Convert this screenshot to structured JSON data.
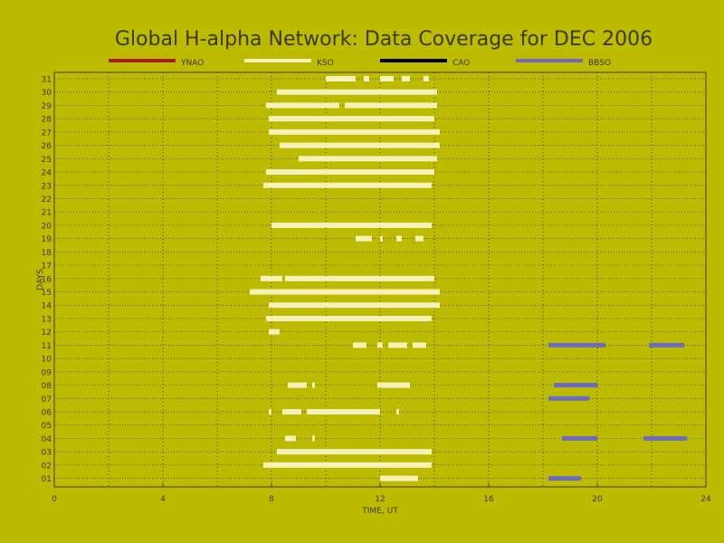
{
  "chart_data": {
    "type": "gantt",
    "title": "Global H-alpha Network: Data Coverage for DEC 2006",
    "xlabel": "TIME, UT",
    "ylabel": "DAYS",
    "xlim": [
      0,
      24
    ],
    "xticks": [
      "0",
      "4",
      "8",
      "12",
      "16",
      "20",
      "24"
    ],
    "ylim": [
      1,
      31
    ],
    "yticks": [
      "01",
      "02",
      "03",
      "04",
      "05",
      "06",
      "07",
      "08",
      "09",
      "10",
      "11",
      "12",
      "13",
      "14",
      "15",
      "16",
      "17",
      "18",
      "19",
      "20",
      "21",
      "22",
      "23",
      "24",
      "25",
      "26",
      "27",
      "28",
      "29",
      "30",
      "31"
    ],
    "grid": true,
    "legend_placement": "top",
    "series": [
      {
        "name": "YNAO",
        "color": "#a61c1c",
        "intervals": []
      },
      {
        "name": "KSO",
        "color": "#f4f2b8",
        "intervals": [
          {
            "day": 31,
            "segments": [
              [
                10.0,
                11.1
              ],
              [
                11.4,
                11.6
              ],
              [
                12.0,
                12.5
              ],
              [
                12.8,
                13.1
              ],
              [
                13.6,
                13.8
              ]
            ]
          },
          {
            "day": 30,
            "segments": [
              [
                8.2,
                14.1
              ]
            ]
          },
          {
            "day": 29,
            "segments": [
              [
                7.8,
                10.5
              ],
              [
                10.7,
                14.1
              ]
            ]
          },
          {
            "day": 28,
            "segments": [
              [
                7.9,
                14.0
              ]
            ]
          },
          {
            "day": 27,
            "segments": [
              [
                7.9,
                14.2
              ]
            ]
          },
          {
            "day": 26,
            "segments": [
              [
                8.3,
                14.2
              ]
            ]
          },
          {
            "day": 25,
            "segments": [
              [
                9.0,
                14.1
              ]
            ]
          },
          {
            "day": 24,
            "segments": [
              [
                7.8,
                14.0
              ]
            ]
          },
          {
            "day": 23,
            "segments": [
              [
                7.7,
                13.9
              ]
            ]
          },
          {
            "day": 20,
            "segments": [
              [
                8.0,
                13.9
              ]
            ]
          },
          {
            "day": 19,
            "segments": [
              [
                11.1,
                11.7
              ],
              [
                12.0,
                12.1
              ],
              [
                12.6,
                12.8
              ],
              [
                13.3,
                13.6
              ]
            ]
          },
          {
            "day": 16,
            "segments": [
              [
                7.6,
                8.4
              ],
              [
                8.5,
                14.0
              ]
            ]
          },
          {
            "day": 15,
            "segments": [
              [
                7.2,
                14.2
              ]
            ]
          },
          {
            "day": 14,
            "segments": [
              [
                7.9,
                14.2
              ]
            ]
          },
          {
            "day": 13,
            "segments": [
              [
                7.8,
                13.9
              ]
            ]
          },
          {
            "day": 12,
            "segments": [
              [
                7.9,
                8.3
              ]
            ]
          },
          {
            "day": 11,
            "segments": [
              [
                11.0,
                11.5
              ],
              [
                11.9,
                12.1
              ],
              [
                12.3,
                13.0
              ],
              [
                13.2,
                13.7
              ]
            ]
          },
          {
            "day": 8,
            "segments": [
              [
                8.6,
                9.3
              ],
              [
                9.5,
                9.6
              ],
              [
                11.9,
                13.1
              ]
            ]
          },
          {
            "day": 6,
            "segments": [
              [
                7.9,
                8.0
              ],
              [
                8.4,
                9.1
              ],
              [
                9.3,
                12.0
              ],
              [
                12.6,
                12.7
              ]
            ]
          },
          {
            "day": 4,
            "segments": [
              [
                8.5,
                8.9
              ],
              [
                9.5,
                9.6
              ]
            ]
          },
          {
            "day": 3,
            "segments": [
              [
                8.2,
                13.9
              ]
            ]
          },
          {
            "day": 2,
            "segments": [
              [
                7.7,
                13.9
              ]
            ]
          },
          {
            "day": 1,
            "segments": [
              [
                12.0,
                13.4
              ]
            ]
          }
        ]
      },
      {
        "name": "CAO",
        "color": "#000000",
        "intervals": []
      },
      {
        "name": "BBSO",
        "color": "#6b6bc4",
        "intervals": [
          {
            "day": 11,
            "segments": [
              [
                18.2,
                20.3
              ],
              [
                21.9,
                23.2
              ]
            ]
          },
          {
            "day": 8,
            "segments": [
              [
                18.4,
                20.0
              ]
            ]
          },
          {
            "day": 7,
            "segments": [
              [
                18.2,
                19.7
              ]
            ]
          },
          {
            "day": 4,
            "segments": [
              [
                18.7,
                20.0
              ],
              [
                21.7,
                23.3
              ]
            ]
          },
          {
            "day": 1,
            "segments": [
              [
                18.2,
                19.4
              ]
            ]
          }
        ]
      }
    ]
  }
}
